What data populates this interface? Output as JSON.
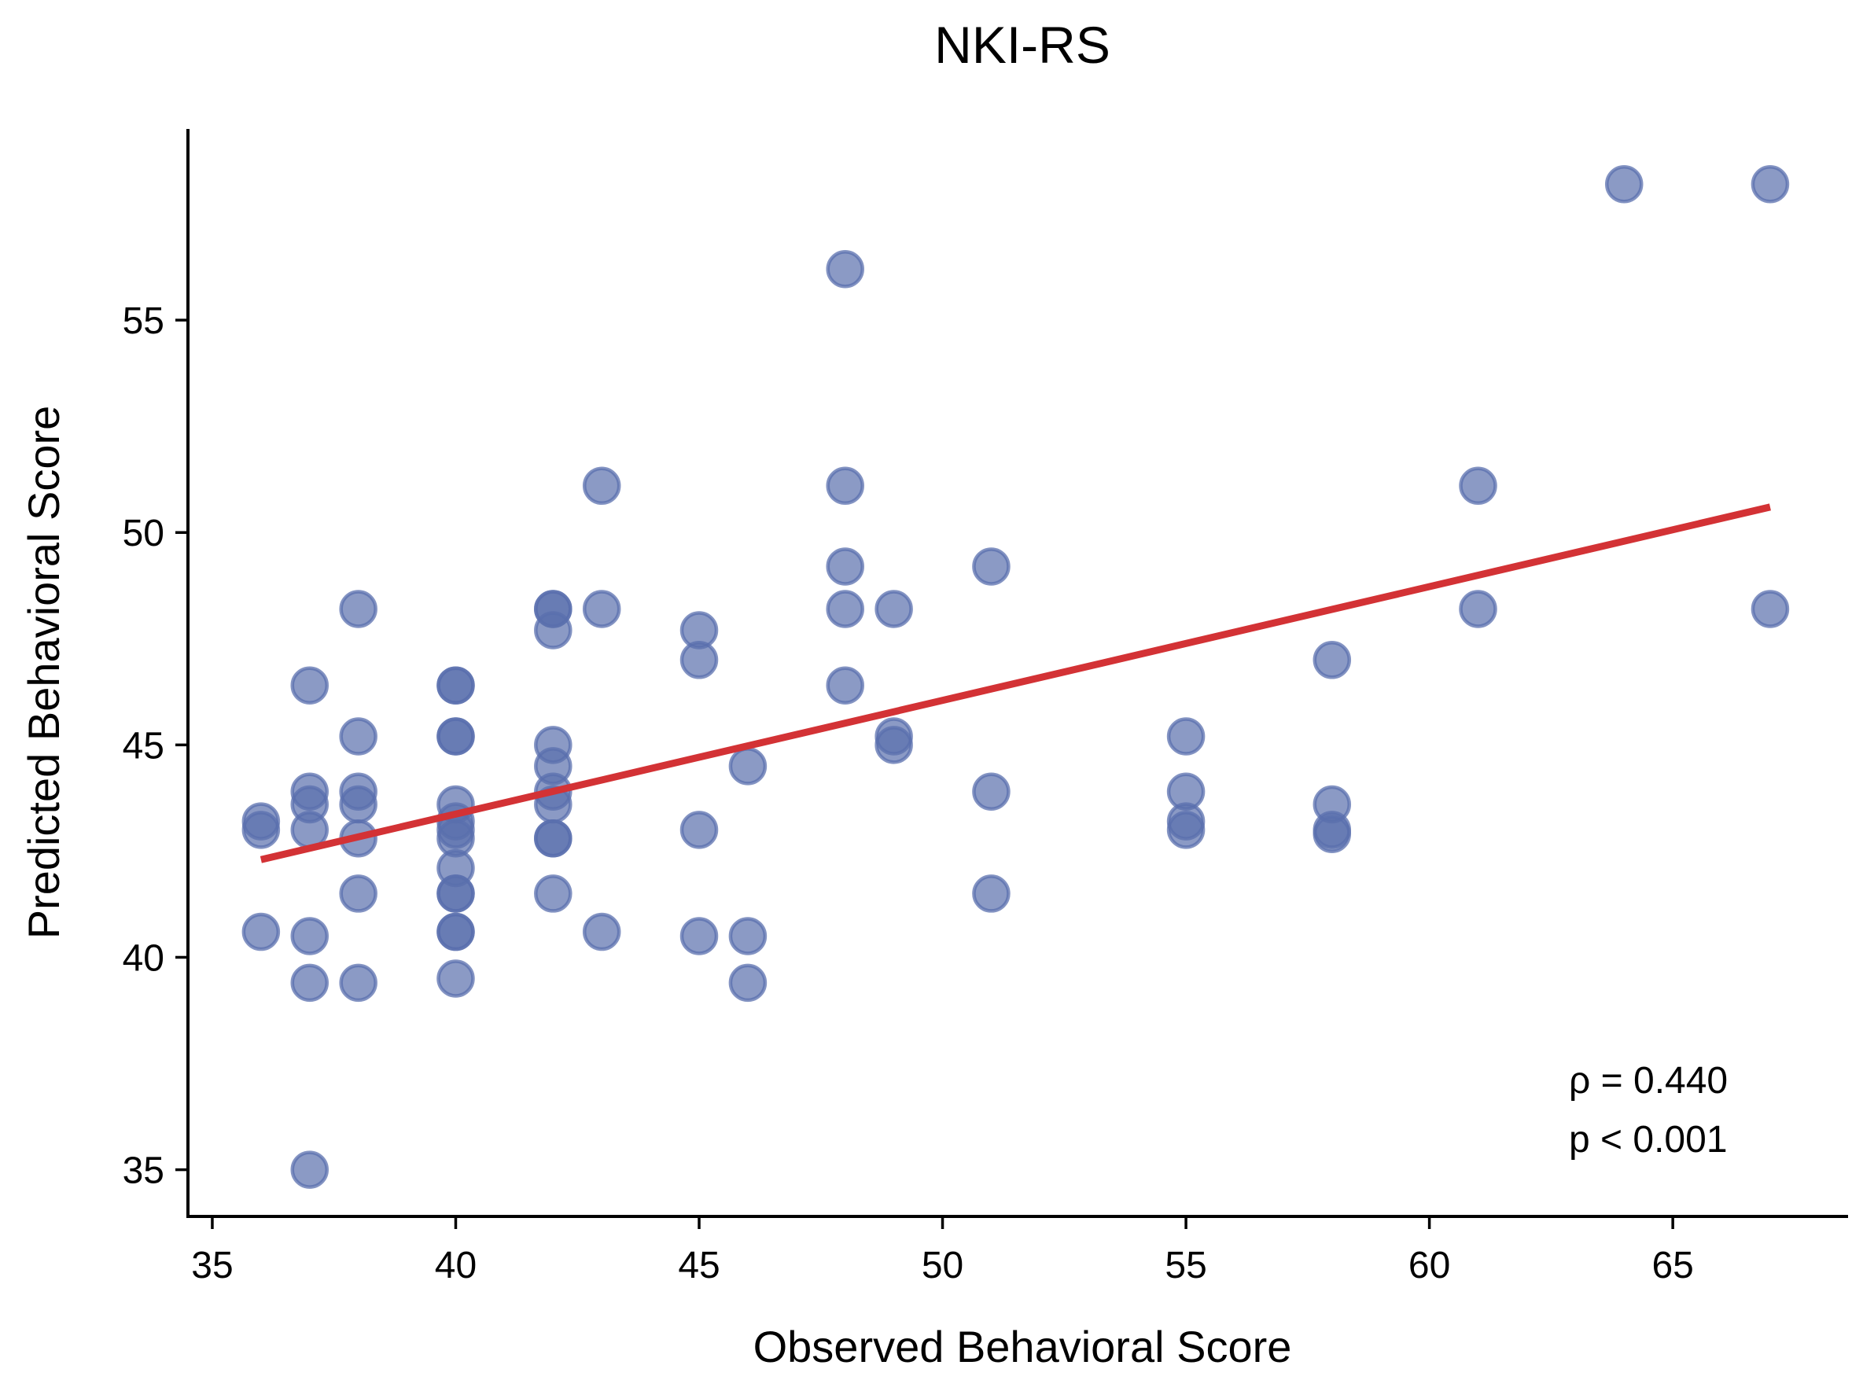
{
  "chart_data": {
    "type": "scatter",
    "title": "NKI-RS",
    "xlabel": "Observed Behavioral Score",
    "ylabel": "Predicted Behavioral Score",
    "xlim": [
      34.5,
      68.6
    ],
    "ylim": [
      33.9,
      59.5
    ],
    "xticks": [
      35,
      40,
      45,
      50,
      55,
      60,
      65
    ],
    "yticks": [
      35,
      40,
      45,
      50,
      55
    ],
    "grid": false,
    "point_color": "#5a6fad",
    "line_color": "#d33235",
    "points": [
      {
        "x": 36,
        "y": 43.2
      },
      {
        "x": 36,
        "y": 43.0
      },
      {
        "x": 36,
        "y": 40.6
      },
      {
        "x": 37,
        "y": 46.4
      },
      {
        "x": 37,
        "y": 43.9
      },
      {
        "x": 37,
        "y": 43.6
      },
      {
        "x": 37,
        "y": 43.0
      },
      {
        "x": 37,
        "y": 40.5
      },
      {
        "x": 37,
        "y": 39.4
      },
      {
        "x": 37,
        "y": 35.0
      },
      {
        "x": 38,
        "y": 48.2
      },
      {
        "x": 38,
        "y": 45.2
      },
      {
        "x": 38,
        "y": 43.9
      },
      {
        "x": 38,
        "y": 43.6
      },
      {
        "x": 38,
        "y": 42.8
      },
      {
        "x": 38,
        "y": 41.5
      },
      {
        "x": 38,
        "y": 39.4
      },
      {
        "x": 40,
        "y": 46.4
      },
      {
        "x": 40,
        "y": 46.4
      },
      {
        "x": 40,
        "y": 45.2
      },
      {
        "x": 40,
        "y": 45.2
      },
      {
        "x": 40,
        "y": 43.6
      },
      {
        "x": 40,
        "y": 43.2
      },
      {
        "x": 40,
        "y": 43.0
      },
      {
        "x": 40,
        "y": 42.8
      },
      {
        "x": 40,
        "y": 42.1
      },
      {
        "x": 40,
        "y": 41.5
      },
      {
        "x": 40,
        "y": 41.5
      },
      {
        "x": 40,
        "y": 40.6
      },
      {
        "x": 40,
        "y": 40.6
      },
      {
        "x": 40,
        "y": 39.5
      },
      {
        "x": 42,
        "y": 48.2
      },
      {
        "x": 42,
        "y": 48.2
      },
      {
        "x": 42,
        "y": 47.7
      },
      {
        "x": 42,
        "y": 45.0
      },
      {
        "x": 42,
        "y": 44.5
      },
      {
        "x": 42,
        "y": 43.9
      },
      {
        "x": 42,
        "y": 43.6
      },
      {
        "x": 42,
        "y": 42.8
      },
      {
        "x": 42,
        "y": 42.8
      },
      {
        "x": 42,
        "y": 41.5
      },
      {
        "x": 43,
        "y": 51.1
      },
      {
        "x": 43,
        "y": 48.2
      },
      {
        "x": 43,
        "y": 40.6
      },
      {
        "x": 45,
        "y": 47.7
      },
      {
        "x": 45,
        "y": 47.0
      },
      {
        "x": 45,
        "y": 43.0
      },
      {
        "x": 45,
        "y": 40.5
      },
      {
        "x": 46,
        "y": 44.5
      },
      {
        "x": 46,
        "y": 40.5
      },
      {
        "x": 46,
        "y": 39.4
      },
      {
        "x": 48,
        "y": 56.2
      },
      {
        "x": 48,
        "y": 51.1
      },
      {
        "x": 48,
        "y": 49.2
      },
      {
        "x": 48,
        "y": 48.2
      },
      {
        "x": 48,
        "y": 46.4
      },
      {
        "x": 49,
        "y": 48.2
      },
      {
        "x": 49,
        "y": 45.2
      },
      {
        "x": 49,
        "y": 45.0
      },
      {
        "x": 51,
        "y": 49.2
      },
      {
        "x": 51,
        "y": 43.9
      },
      {
        "x": 51,
        "y": 41.5
      },
      {
        "x": 55,
        "y": 45.2
      },
      {
        "x": 55,
        "y": 43.9
      },
      {
        "x": 55,
        "y": 43.2
      },
      {
        "x": 55,
        "y": 43.0
      },
      {
        "x": 58,
        "y": 47.0
      },
      {
        "x": 58,
        "y": 43.6
      },
      {
        "x": 58,
        "y": 43.0
      },
      {
        "x": 58,
        "y": 42.9
      },
      {
        "x": 61,
        "y": 51.1
      },
      {
        "x": 61,
        "y": 48.2
      },
      {
        "x": 64,
        "y": 58.2
      },
      {
        "x": 67,
        "y": 58.2
      },
      {
        "x": 67,
        "y": 48.2
      }
    ],
    "fit_line": {
      "x": [
        36,
        67
      ],
      "y": [
        42.3,
        50.6
      ]
    },
    "annotation": [
      "ρ = 0.440",
      "p < 0.001"
    ]
  }
}
